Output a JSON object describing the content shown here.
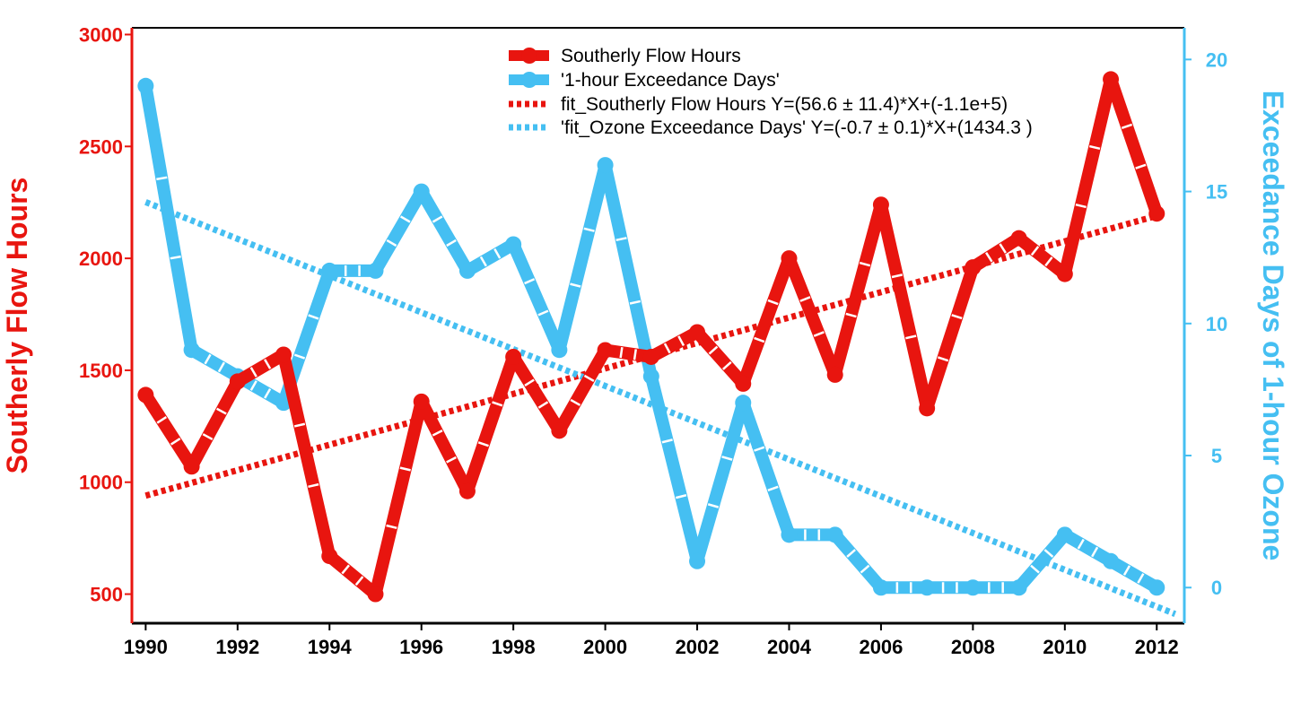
{
  "colors": {
    "red": "#e8150f",
    "blue": "#45bff2",
    "axis": "#000000"
  },
  "chart_data": {
    "type": "line",
    "x": [
      1990,
      1991,
      1992,
      1993,
      1994,
      1995,
      1996,
      1997,
      1998,
      1999,
      2000,
      2001,
      2002,
      2003,
      2004,
      2005,
      2006,
      2007,
      2008,
      2009,
      2010,
      2011,
      2012
    ],
    "series": [
      {
        "name": "Southerly Flow Hours",
        "axis": "left",
        "values": [
          1390,
          1070,
          1450,
          1570,
          670,
          500,
          1360,
          960,
          1560,
          1230,
          1590,
          1560,
          1670,
          1440,
          2000,
          1480,
          2240,
          1330,
          1960,
          2090,
          1930,
          2800,
          2200
        ]
      },
      {
        "name": "'1-hour Exceedance Days'",
        "axis": "right",
        "values": [
          19,
          9,
          8,
          7,
          12,
          12,
          15,
          12,
          13,
          9,
          16,
          8,
          1,
          7,
          2,
          2,
          0,
          0,
          0,
          0,
          2,
          1,
          0
        ]
      }
    ],
    "fits": [
      {
        "name": "fit_Southerly Flow Hours Y=(56.6 ± 11.4)*X+(-1.1e+5)",
        "axis": "left",
        "x_range": [
          1990,
          2012
        ],
        "y_range": [
          940,
          2190
        ]
      },
      {
        "name": "'fit_Ozone Exceedance Days' Y=(-0.7 ± 0.1)*X+(1434.3 )",
        "axis": "right",
        "x_range": [
          1990,
          2012.4
        ],
        "y_range": [
          14.6,
          -1.0
        ]
      }
    ],
    "title": "",
    "xlabel": "",
    "ylabel": "Southerly Flow Hours",
    "y2label": "Exceedance Days of 1-hour  Ozone",
    "xlim": [
      1989.7,
      2012.6
    ],
    "ylim": [
      370,
      3030
    ],
    "y2lim": [
      -1.35,
      21.2
    ],
    "xticks": [
      "1990",
      "1992",
      "1994",
      "1996",
      "1998",
      "2000",
      "2002",
      "2004",
      "2006",
      "2008",
      "2010",
      "2012"
    ],
    "yticks": [
      "500",
      "1000",
      "1500",
      "2000",
      "2500",
      "3000"
    ],
    "y2ticks": [
      "0",
      "5",
      "10",
      "15",
      "20"
    ],
    "legend_position": "top-center"
  }
}
